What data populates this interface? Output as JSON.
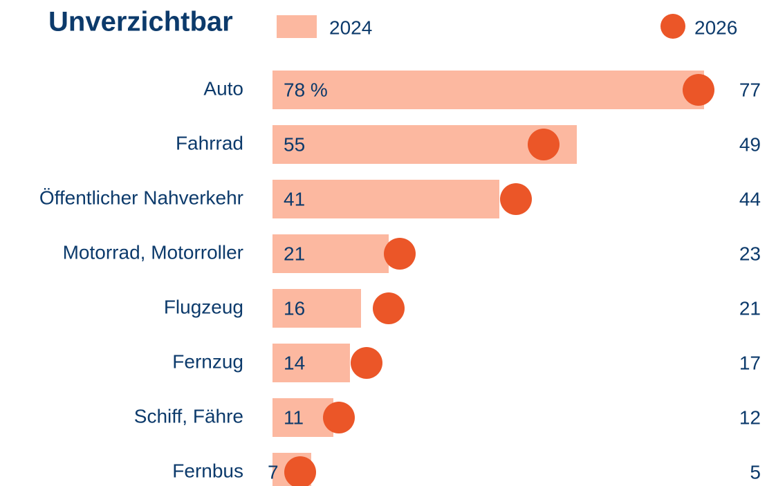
{
  "chart_data": {
    "type": "bar-dot",
    "title": "Unverzichtbar",
    "categories": [
      "Auto",
      "Fahrrad",
      "Öffentlicher Nahverkehr",
      "Motorrad, Motorroller",
      "Flugzeug",
      "Fernzug",
      "Schiff, Fähre",
      "Fernbus"
    ],
    "series": [
      {
        "name": "2024",
        "color": "#fcb8a0",
        "values": [
          78,
          55,
          41,
          21,
          16,
          14,
          11,
          7
        ],
        "value_labels": [
          "78 %",
          "55",
          "41",
          "21",
          "16",
          "14",
          "11",
          "7"
        ]
      },
      {
        "name": "2026",
        "color": "#eb5628",
        "values": [
          77,
          49,
          44,
          23,
          21,
          17,
          12,
          5
        ]
      }
    ]
  }
}
